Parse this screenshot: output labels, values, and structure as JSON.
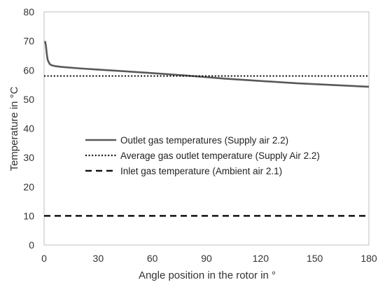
{
  "chart_data": {
    "type": "line",
    "title": "",
    "xlabel": "Angle position in the rotor in °",
    "ylabel": "Temperature in °C",
    "xlim": [
      0,
      180
    ],
    "ylim": [
      0,
      80
    ],
    "xticks": [
      0,
      30,
      60,
      90,
      120,
      150,
      180
    ],
    "yticks": [
      0,
      10,
      20,
      30,
      40,
      50,
      60,
      70,
      80
    ],
    "grid": false,
    "legend_position": "center-left",
    "series": [
      {
        "name": "Outlet gas temperatures (Supply air 2.2)",
        "style": "solid",
        "color": "#595959",
        "x": [
          0.5,
          1,
          1.5,
          2,
          3,
          4,
          6,
          10,
          20,
          30,
          40,
          60,
          80,
          90,
          100,
          120,
          140,
          160,
          180
        ],
        "y": [
          70,
          68.5,
          65.5,
          63.5,
          62.2,
          61.7,
          61.4,
          61.1,
          60.6,
          60.2,
          59.8,
          59.0,
          58.1,
          57.6,
          57.1,
          56.3,
          55.5,
          54.9,
          54.3
        ]
      },
      {
        "name": "Average gas outlet temperature (Supply Air 2.2)",
        "style": "dotted",
        "color": "#111111",
        "x": [
          0,
          180
        ],
        "y": [
          58,
          58
        ]
      },
      {
        "name": "Inlet gas temperature (Ambient air 2.1)",
        "style": "dashed",
        "color": "#111111",
        "x": [
          0,
          180
        ],
        "y": [
          10,
          10
        ]
      }
    ]
  }
}
